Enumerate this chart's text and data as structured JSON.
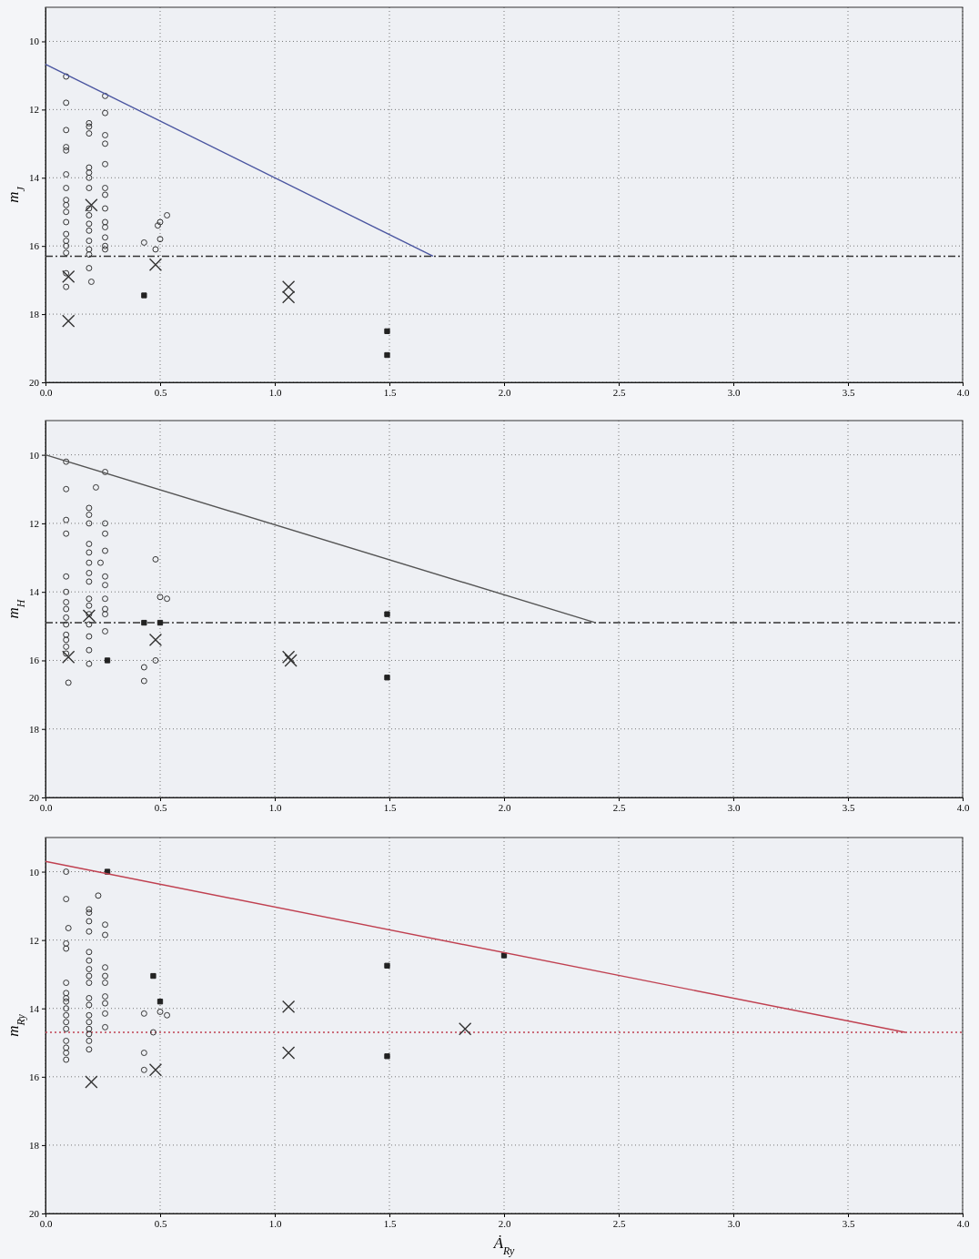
{
  "chart_data": [
    {
      "type": "scatter",
      "ylabel": "m$_{J}$",
      "xlim": [
        0,
        4
      ],
      "ylim": [
        20,
        9
      ],
      "xticks": [
        {
          "value": 0,
          "label": "0.0"
        },
        0.5,
        {
          "value": 1,
          "label": "1.0"
        },
        1.5,
        {
          "value": 2,
          "label": "2.0"
        },
        2.5,
        {
          "value": 3,
          "label": "3.0"
        },
        3.5,
        {
          "value": 4,
          "label": "4.0"
        }
      ],
      "yticks": [
        10,
        12,
        14,
        16,
        18,
        20
      ],
      "grid": true,
      "ref_lines": [
        {
          "axis": "y",
          "value": 16.3,
          "color": "#333333",
          "line_style": "dashed"
        }
      ],
      "series": [
        {
          "type": "scatter",
          "marker": "circle",
          "color": "#333333",
          "x": [
            0.09,
            0.09,
            0.09,
            0.09,
            0.09,
            0.09,
            0.09,
            0.09,
            0.09,
            0.09,
            0.09,
            0.09,
            0.09,
            0.09,
            0.09,
            0.09,
            0.09,
            0.19,
            0.19,
            0.19,
            0.19,
            0.19,
            0.19,
            0.19,
            0.19,
            0.19,
            0.19,
            0.19,
            0.19,
            0.19,
            0.19,
            0.19,
            0.2,
            0.26,
            0.26,
            0.26,
            0.26,
            0.26,
            0.26,
            0.26,
            0.26,
            0.26,
            0.26,
            0.26,
            0.26,
            0.26,
            0.43,
            0.49,
            0.5,
            0.53,
            0.5,
            0.48
          ],
          "values": [
            11.03,
            11.8,
            12.6,
            13.1,
            13.2,
            13.9,
            14.3,
            14.65,
            14.8,
            15.0,
            15.3,
            15.65,
            15.85,
            16.0,
            16.2,
            16.8,
            17.2,
            12.4,
            12.5,
            12.7,
            13.7,
            13.85,
            14.0,
            14.3,
            14.9,
            15.1,
            15.35,
            15.55,
            15.85,
            16.1,
            16.25,
            16.65,
            17.05,
            11.6,
            12.1,
            12.75,
            13.0,
            13.6,
            14.3,
            14.5,
            14.9,
            15.3,
            15.45,
            15.75,
            16.0,
            16.1,
            15.9,
            15.4,
            15.3,
            15.1,
            15.8,
            16.1
          ]
        },
        {
          "type": "scatter",
          "marker": "square",
          "color": "#222222",
          "x": [
            0.43,
            1.49,
            1.49
          ],
          "values": [
            17.45,
            18.5,
            19.2
          ]
        },
        {
          "type": "scatter",
          "marker": "cross",
          "color": "#333333",
          "x": [
            0.1,
            0.1,
            0.2,
            0.48,
            1.06,
            1.06
          ],
          "values": [
            16.9,
            18.2,
            14.8,
            16.55,
            17.2,
            17.5
          ]
        },
        {
          "type": "line",
          "marker": "none",
          "color": "#4a55a0",
          "x": [
            0,
            1.69
          ],
          "values": [
            10.67,
            16.3
          ]
        }
      ]
    },
    {
      "type": "scatter",
      "ylabel": "m$_{H}$",
      "xlim": [
        0,
        4
      ],
      "ylim": [
        20,
        9
      ],
      "xticks": [
        {
          "value": 0,
          "label": "0.0"
        },
        0.5,
        {
          "value": 1,
          "label": "1.0"
        },
        1.5,
        {
          "value": 2,
          "label": "2.0"
        },
        2.5,
        {
          "value": 3,
          "label": "3.0"
        },
        3.5,
        {
          "value": 4,
          "label": "4.0"
        }
      ],
      "yticks": [
        10,
        12,
        14,
        16,
        18,
        20
      ],
      "grid": true,
      "ref_lines": [
        {
          "axis": "y",
          "value": 14.9,
          "color": "#333333",
          "line_style": "dashed"
        }
      ],
      "series": [
        {
          "type": "scatter",
          "marker": "circle",
          "color": "#333333",
          "x": [
            0.09,
            0.09,
            0.09,
            0.09,
            0.09,
            0.09,
            0.09,
            0.09,
            0.09,
            0.09,
            0.09,
            0.09,
            0.09,
            0.09,
            0.1,
            0.19,
            0.19,
            0.19,
            0.19,
            0.19,
            0.19,
            0.19,
            0.19,
            0.19,
            0.19,
            0.19,
            0.19,
            0.19,
            0.19,
            0.19,
            0.26,
            0.22,
            0.26,
            0.26,
            0.26,
            0.24,
            0.26,
            0.26,
            0.26,
            0.26,
            0.26,
            0.26,
            0.48,
            0.48,
            0.53,
            0.5,
            0.43,
            0.43
          ],
          "values": [
            10.2,
            11.0,
            11.9,
            12.3,
            13.55,
            14.0,
            14.3,
            14.5,
            14.75,
            14.95,
            15.25,
            15.4,
            15.6,
            15.8,
            16.65,
            11.55,
            11.75,
            12.0,
            12.6,
            12.85,
            13.15,
            13.45,
            13.7,
            14.2,
            14.4,
            14.65,
            14.95,
            15.3,
            15.7,
            16.1,
            10.5,
            10.95,
            12.0,
            12.3,
            12.8,
            13.15,
            13.55,
            13.8,
            14.2,
            14.5,
            14.65,
            15.15,
            13.05,
            16.0,
            14.2,
            14.15,
            16.2,
            16.6
          ]
        },
        {
          "type": "scatter",
          "marker": "square",
          "color": "#222222",
          "x": [
            0.43,
            0.5,
            0.27,
            1.49,
            1.49
          ],
          "values": [
            14.9,
            14.9,
            16.0,
            14.65,
            16.5
          ]
        },
        {
          "type": "scatter",
          "marker": "cross",
          "color": "#333333",
          "x": [
            0.1,
            0.19,
            0.48,
            1.06,
            1.07
          ],
          "values": [
            15.9,
            14.7,
            15.4,
            15.9,
            16.0
          ]
        },
        {
          "type": "line",
          "marker": "none",
          "color": "#555555",
          "x": [
            0,
            2.4
          ],
          "values": [
            10.0,
            14.9
          ]
        }
      ]
    },
    {
      "type": "scatter",
      "ylabel": "m$_{Ry}$",
      "xlabel": "Ȧ$_{Ry}$",
      "xlim": [
        0,
        4
      ],
      "ylim": [
        20,
        9
      ],
      "xticks": [
        {
          "value": 0,
          "label": "0.0"
        },
        0.5,
        {
          "value": 1,
          "label": "1.0"
        },
        1.5,
        {
          "value": 2,
          "label": "2.0"
        },
        2.5,
        {
          "value": 3,
          "label": "3.0"
        },
        3.5,
        {
          "value": 4,
          "label": "4.0"
        }
      ],
      "yticks": [
        10,
        12,
        14,
        16,
        18,
        20
      ],
      "grid": true,
      "ref_lines": [
        {
          "axis": "y",
          "value": 14.7,
          "color": "#c04050",
          "line_style": "dotted"
        }
      ],
      "series": [
        {
          "type": "scatter",
          "marker": "circle",
          "color": "#333333",
          "x": [
            0.09,
            0.09,
            0.1,
            0.09,
            0.09,
            0.09,
            0.09,
            0.09,
            0.09,
            0.09,
            0.09,
            0.09,
            0.09,
            0.09,
            0.09,
            0.09,
            0.09,
            0.19,
            0.19,
            0.19,
            0.19,
            0.19,
            0.19,
            0.19,
            0.19,
            0.19,
            0.19,
            0.19,
            0.19,
            0.19,
            0.19,
            0.19,
            0.19,
            0.19,
            0.23,
            0.26,
            0.26,
            0.26,
            0.26,
            0.26,
            0.26,
            0.26,
            0.26,
            0.26,
            0.43,
            0.43,
            0.43,
            0.47,
            0.5,
            0.53
          ],
          "values": [
            10.0,
            10.8,
            11.65,
            12.1,
            12.25,
            13.25,
            13.55,
            13.7,
            13.8,
            14.0,
            14.2,
            14.4,
            14.6,
            14.95,
            15.15,
            15.3,
            15.5,
            11.1,
            11.2,
            11.45,
            11.75,
            12.35,
            12.6,
            12.85,
            13.05,
            13.25,
            13.7,
            13.9,
            14.2,
            14.4,
            14.6,
            14.75,
            14.95,
            15.2,
            10.7,
            11.55,
            11.85,
            12.8,
            13.05,
            13.25,
            13.65,
            13.85,
            14.15,
            14.55,
            14.15,
            15.3,
            15.8,
            14.7,
            14.1,
            14.2
          ]
        },
        {
          "type": "scatter",
          "marker": "square",
          "color": "#222222",
          "x": [
            0.27,
            0.47,
            0.5,
            1.49,
            1.49,
            2.0
          ],
          "values": [
            10.0,
            13.05,
            13.8,
            12.75,
            15.4,
            12.45
          ]
        },
        {
          "type": "scatter",
          "marker": "cross",
          "color": "#333333",
          "x": [
            0.2,
            0.48,
            1.06,
            1.06,
            1.83
          ],
          "values": [
            16.15,
            15.8,
            13.95,
            15.3,
            14.6
          ]
        },
        {
          "type": "line",
          "marker": "none",
          "color": "#c04050",
          "x": [
            0,
            3.75
          ],
          "values": [
            9.7,
            14.7
          ]
        }
      ]
    }
  ]
}
